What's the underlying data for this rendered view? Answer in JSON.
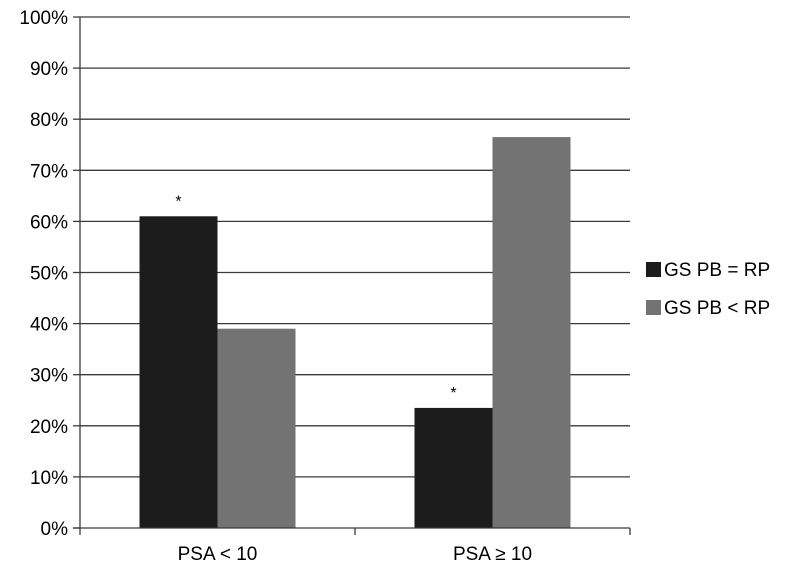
{
  "chart_data": {
    "type": "bar",
    "categories": [
      "PSA < 10",
      "PSA ≥ 10"
    ],
    "series": [
      {
        "name": "GS PB = RP",
        "values": [
          61,
          23.5
        ],
        "color": "#1c1c1c"
      },
      {
        "name": "GS PB < RP",
        "values": [
          39,
          76.5
        ],
        "color": "#737373"
      }
    ],
    "annotations": [
      {
        "category_index": 0,
        "series_index": 0,
        "text": "*"
      },
      {
        "category_index": 1,
        "series_index": 0,
        "text": "*"
      }
    ],
    "ylim": [
      0,
      100
    ],
    "y_ticks": [
      0,
      10,
      20,
      30,
      40,
      50,
      60,
      70,
      80,
      90,
      100
    ],
    "y_tick_format": "%",
    "grid": true,
    "legend_position": "right"
  }
}
